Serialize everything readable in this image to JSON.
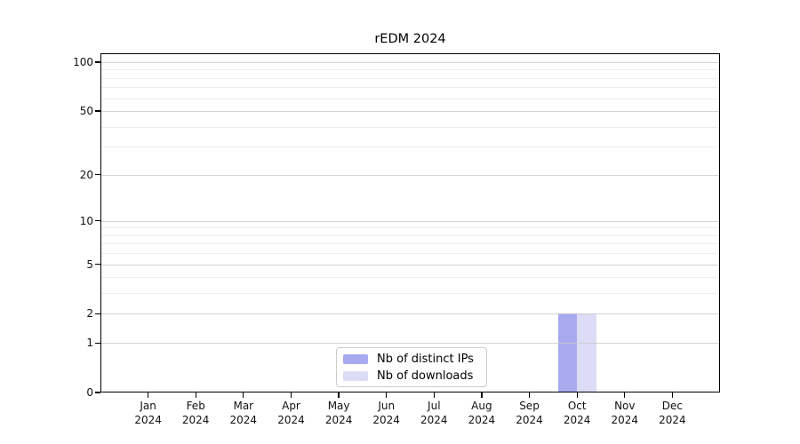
{
  "chart_data": {
    "type": "bar",
    "title": "rEDM 2024",
    "months": [
      "Jan",
      "Feb",
      "Mar",
      "Apr",
      "May",
      "Jun",
      "Jul",
      "Aug",
      "Sep",
      "Oct",
      "Nov",
      "Dec"
    ],
    "year": "2024",
    "categories": [
      "Jan 2024",
      "Feb 2024",
      "Mar 2024",
      "Apr 2024",
      "May 2024",
      "Jun 2024",
      "Jul 2024",
      "Aug 2024",
      "Sep 2024",
      "Oct 2024",
      "Nov 2024",
      "Dec 2024"
    ],
    "series": [
      {
        "name": "Nb of distinct IPs",
        "key": "distinct-ips",
        "color": "#a9a9f0",
        "values": [
          0,
          0,
          0,
          0,
          0,
          0,
          0,
          0,
          0,
          2,
          0,
          0
        ]
      },
      {
        "name": "Nb of downloads",
        "key": "downloads",
        "color": "#dcdcf6",
        "values": [
          0,
          0,
          0,
          0,
          0,
          0,
          0,
          0,
          0,
          2,
          0,
          0
        ]
      }
    ],
    "y_axis": {
      "scale": "log1p",
      "ticks": [
        0,
        1,
        2,
        5,
        10,
        20,
        50,
        100
      ],
      "minor_ticks": [
        3,
        4,
        6,
        7,
        8,
        9,
        30,
        40,
        60,
        70,
        80,
        90
      ],
      "ylim": [
        0,
        113
      ]
    },
    "grid": true,
    "legend_position": "bottom-center"
  },
  "colors": {
    "distinct_ips": "#a9a9f0",
    "downloads": "#dcdcf6",
    "grid_major": "#c9c9c9",
    "grid_minor": "#e3e3e3",
    "axis": "#000000",
    "background": "#ffffff",
    "legend_border": "#cccccc",
    "text": "#111111"
  }
}
